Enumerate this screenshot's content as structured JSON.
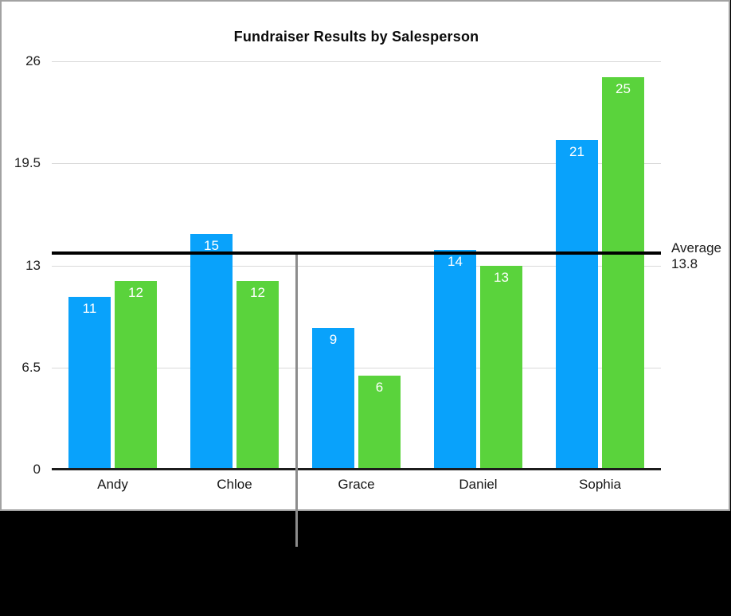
{
  "title": "Fundraiser Results by Salesperson",
  "chart_data": {
    "type": "bar",
    "title": "Fundraiser Results by Salesperson",
    "categories": [
      "Andy",
      "Chloe",
      "Grace",
      "Daniel",
      "Sophia"
    ],
    "series": [
      {
        "name": "blue",
        "color": "#09a2fb",
        "values": [
          11,
          15,
          9,
          14,
          21
        ]
      },
      {
        "name": "green",
        "color": "#5ad33c",
        "values": [
          12,
          12,
          6,
          13,
          25
        ]
      }
    ],
    "y_ticks": [
      26,
      19.5,
      13,
      6.5,
      0
    ],
    "ylim": [
      0,
      26
    ],
    "grid": true,
    "value_labels": true,
    "legend": "none",
    "annotation": {
      "line1": "Average",
      "line2": "13.8",
      "value": 13.8
    }
  },
  "colors": {
    "series_blue": "#09a2fb",
    "series_green": "#5ad33c",
    "average_line": "#000000",
    "callout_line": "#8c8c8c",
    "card_background": "#ffffff",
    "page_background": "#000000",
    "card_border": "#a2a2a2",
    "gridline": "#d9d9d9",
    "axis_line": "#1c1c1c"
  }
}
